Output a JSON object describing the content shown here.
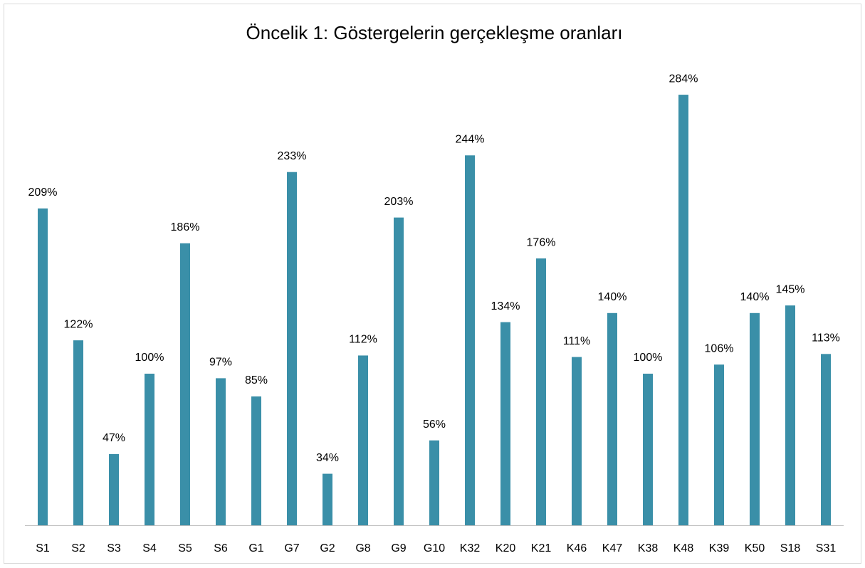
{
  "chart_data": {
    "type": "bar",
    "title": "Öncelik 1: Göstergelerin gerçekleşme oranları",
    "categories": [
      "S1",
      "S2",
      "S3",
      "S4",
      "S5",
      "S6",
      "G1",
      "G7",
      "G2",
      "G8",
      "G9",
      "G10",
      "K32",
      "K20",
      "K21",
      "K46",
      "K47",
      "K38",
      "K48",
      "K39",
      "K50",
      "S18",
      "S31"
    ],
    "values": [
      209,
      122,
      47,
      100,
      186,
      97,
      85,
      233,
      34,
      112,
      203,
      56,
      244,
      134,
      176,
      111,
      140,
      100,
      284,
      106,
      140,
      145,
      113
    ],
    "value_labels": [
      "209%",
      "122%",
      "47%",
      "100%",
      "186%",
      "97%",
      "85%",
      "233%",
      "34%",
      "112%",
      "203%",
      "56%",
      "244%",
      "134%",
      "176%",
      "111%",
      "140%",
      "100%",
      "284%",
      "106%",
      "140%",
      "145%",
      "113%"
    ],
    "color": "#3a8fa8",
    "ylim": [
      0,
      300
    ]
  }
}
